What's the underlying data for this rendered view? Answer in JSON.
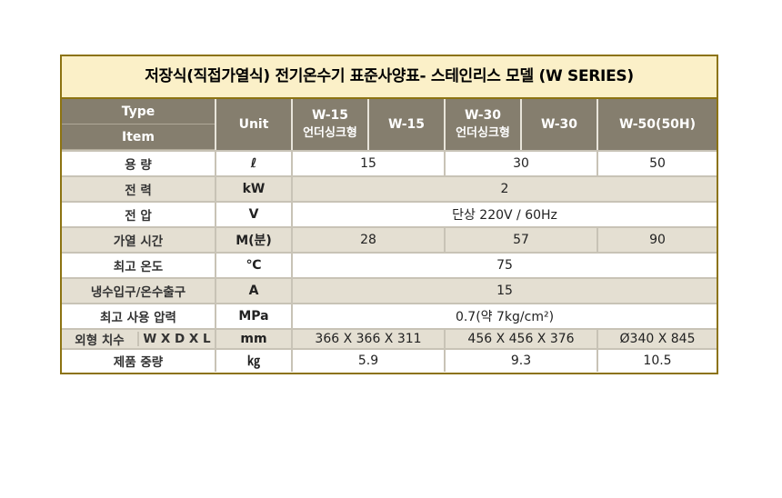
{
  "title": "저장식(직접가열식) 전기온수기 표준사양표- 스테인리스 모델 (W SERIES)",
  "header": {
    "type": "Type",
    "item": "Item",
    "unit": "Unit",
    "models": [
      {
        "line1": "W-15",
        "line2": "언더싱크형"
      },
      {
        "line1": "W-15",
        "line2": ""
      },
      {
        "line1": "W-30",
        "line2": "언더싱크형"
      },
      {
        "line1": "W-30",
        "line2": ""
      },
      {
        "line1": "W-50(50H)",
        "line2": ""
      }
    ]
  },
  "rows": {
    "capacity": {
      "label": "용 량",
      "unit": "ℓ",
      "w15": "15",
      "w30": "30",
      "w50": "50"
    },
    "power": {
      "label": "전 력",
      "unit": "kW",
      "all": "2"
    },
    "voltage": {
      "label": "전 압",
      "unit": "V",
      "all": "단상 220V / 60Hz"
    },
    "heating": {
      "label": "가열 시간",
      "unit": "M(분)",
      "w15": "28",
      "w30": "57",
      "w50": "90"
    },
    "maxtemp": {
      "label": "최고 온도",
      "unit": "℃",
      "all": "75"
    },
    "pipe": {
      "label": "냉수입구/온수출구",
      "unit": "A",
      "all": "15"
    },
    "pressure": {
      "label": "최고 사용 압력",
      "unit": "MPa",
      "all": "0.7(약 7kg/cm²)"
    },
    "dimension": {
      "label_a": "외형 치수",
      "label_b": "W X D X L",
      "unit": "mm",
      "w15": "366 X 366 X 311",
      "w30": "456 X 456 X 376",
      "w50": "Ø340 X 845"
    },
    "weight": {
      "label": "제품 중량",
      "unit": "㎏",
      "w15": "5.9",
      "w30": "9.3",
      "w50": "10.5"
    }
  }
}
